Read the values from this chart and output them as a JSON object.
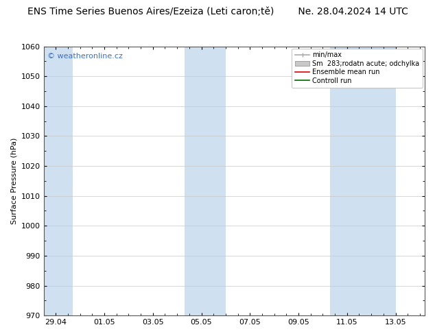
{
  "title": "ENS Time Series Buenos Aires/Ezeiza (Leti caron;tě)        Ne. 28.04.2024 14 UTC",
  "ylabel": "Surface Pressure (hPa)",
  "watermark": "© weatheronline.cz",
  "watermark_color": "#3a6fcc",
  "ylim": [
    970,
    1060
  ],
  "yticks": [
    970,
    980,
    990,
    1000,
    1010,
    1020,
    1030,
    1040,
    1050,
    1060
  ],
  "x_tick_labels": [
    "29.04",
    "01.05",
    "03.05",
    "05.05",
    "07.05",
    "09.05",
    "11.05",
    "13.05"
  ],
  "x_tick_positions": [
    0,
    2,
    4,
    6,
    8,
    10,
    12,
    14
  ],
  "x_lim": [
    -0.5,
    15.2
  ],
  "shaded_regions": [
    {
      "x_start": -0.5,
      "x_end": 0.7,
      "color": "#cfe0f0"
    },
    {
      "x_start": 5.3,
      "x_end": 6.7,
      "color": "#cfe0f0"
    },
    {
      "x_start": 6.7,
      "x_end": 7.0,
      "color": "#cfe0f0"
    },
    {
      "x_start": 11.3,
      "x_end": 12.7,
      "color": "#cfe0f0"
    },
    {
      "x_start": 12.7,
      "x_end": 14.0,
      "color": "#cfe0f0"
    }
  ],
  "background_color": "#ffffff",
  "grid_color": "#c8c8c8",
  "legend_labels": [
    "min/max",
    "Sm  283;rodatn acute; odchylka",
    "Ensemble mean run",
    "Controll run"
  ],
  "legend_colors": [
    "#aaaaaa",
    "#c8c8c8",
    "#dd0000",
    "#006600"
  ],
  "title_fontsize": 10,
  "axis_label_fontsize": 8,
  "tick_fontsize": 8,
  "watermark_fontsize": 8,
  "legend_fontsize": 7
}
